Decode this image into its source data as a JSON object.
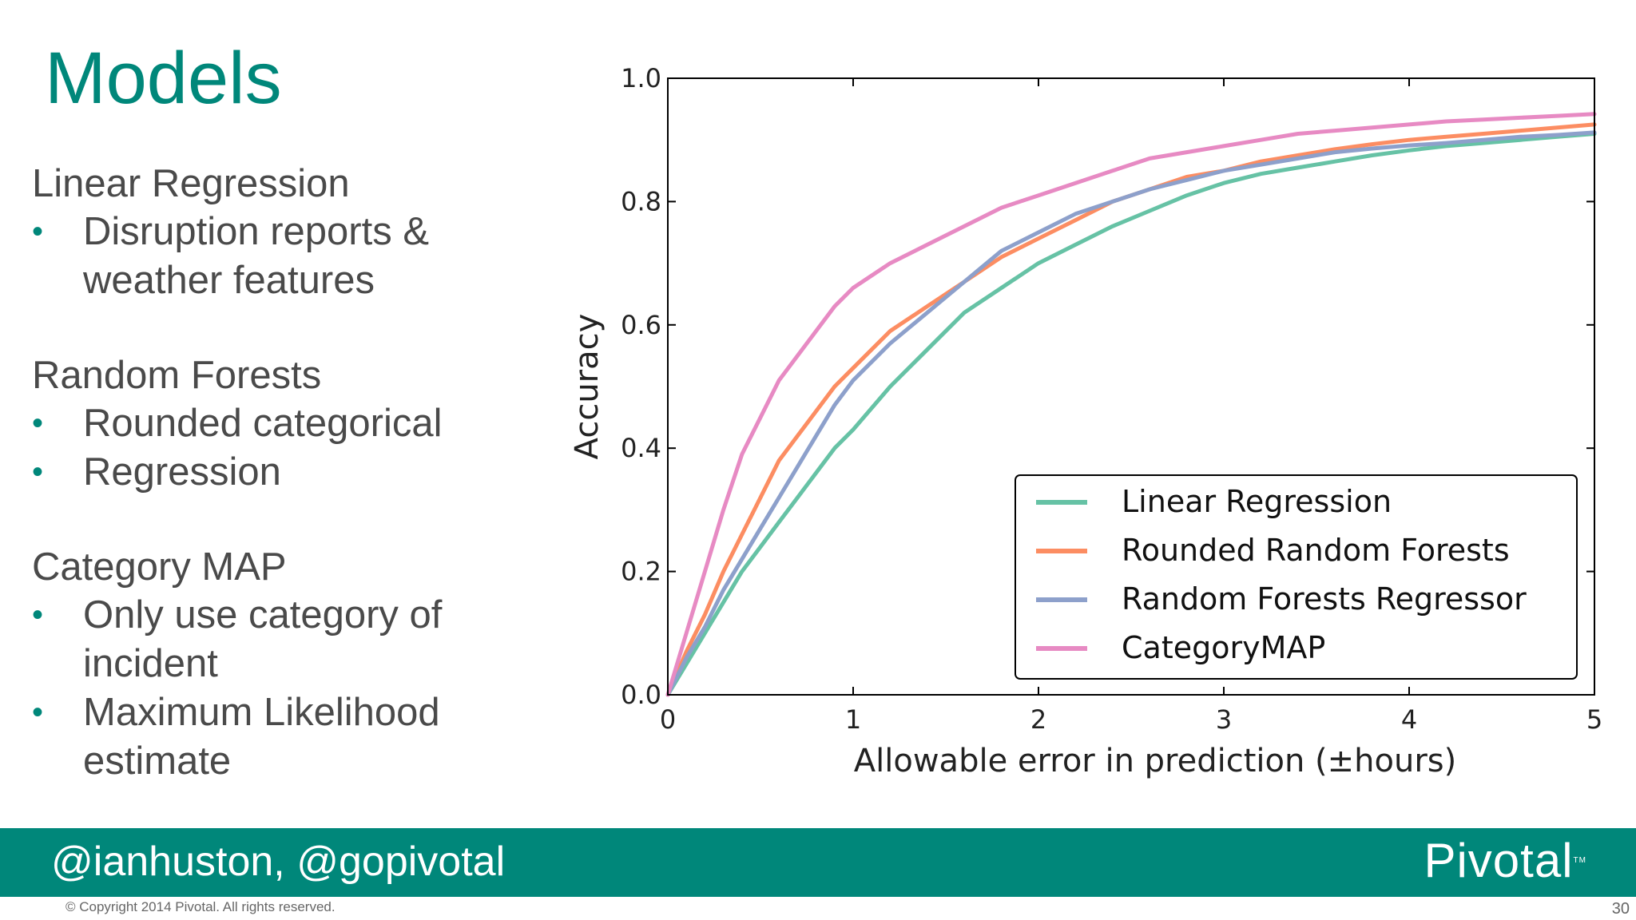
{
  "slide": {
    "title": "Models",
    "sections": [
      {
        "heading": "Linear Regression",
        "bullets": [
          "Disruption reports &",
          "weather features"
        ]
      },
      {
        "heading": "Random Forests",
        "bullets": [
          "Rounded categorical",
          "Regression"
        ]
      },
      {
        "heading": "Category MAP",
        "bullets": [
          "Only use category of",
          "incident",
          "Maximum Likelihood",
          "estimate"
        ]
      }
    ],
    "footer": {
      "handle": "@ianhuston, @gopivotal",
      "logo": "Pivotal",
      "logo_tm": "TM",
      "copyright": "© Copyright 2014 Pivotal. All rights reserved.",
      "page_number": "30"
    },
    "bullet_color": "#00877a",
    "accent_color": "#00877a"
  },
  "chart_data": {
    "type": "line",
    "xlabel": "Allowable error in prediction (±hours)",
    "ylabel": "Accuracy",
    "xlim": [
      0,
      5
    ],
    "ylim": [
      0,
      1.0
    ],
    "xticks": [
      "0",
      "1",
      "2",
      "3",
      "4",
      "5"
    ],
    "yticks": [
      "0.0",
      "0.2",
      "0.4",
      "0.6",
      "0.8",
      "1.0"
    ],
    "grid": false,
    "legend": "lower-right",
    "x": [
      0,
      0.1,
      0.2,
      0.3,
      0.4,
      0.5,
      0.6,
      0.7,
      0.8,
      0.9,
      1.0,
      1.2,
      1.4,
      1.6,
      1.8,
      2.0,
      2.2,
      2.4,
      2.6,
      2.8,
      3.0,
      3.2,
      3.4,
      3.6,
      3.8,
      4.0,
      4.2,
      4.4,
      4.6,
      4.8,
      5.0
    ],
    "series": [
      {
        "name": "Linear Regression",
        "color": "#66c2a5",
        "values": [
          0.0,
          0.05,
          0.1,
          0.15,
          0.2,
          0.24,
          0.28,
          0.32,
          0.36,
          0.4,
          0.43,
          0.5,
          0.56,
          0.62,
          0.66,
          0.7,
          0.73,
          0.76,
          0.785,
          0.81,
          0.83,
          0.845,
          0.855,
          0.865,
          0.875,
          0.883,
          0.89,
          0.895,
          0.9,
          0.905,
          0.91
        ]
      },
      {
        "name": "Rounded Random Forests",
        "color": "#fc8d62",
        "values": [
          0.0,
          0.07,
          0.13,
          0.2,
          0.26,
          0.32,
          0.38,
          0.42,
          0.46,
          0.5,
          0.53,
          0.59,
          0.63,
          0.67,
          0.71,
          0.74,
          0.77,
          0.8,
          0.82,
          0.84,
          0.85,
          0.865,
          0.875,
          0.885,
          0.893,
          0.9,
          0.905,
          0.91,
          0.915,
          0.92,
          0.925
        ]
      },
      {
        "name": "Random Forests Regressor",
        "color": "#8da0cb",
        "values": [
          0.0,
          0.06,
          0.11,
          0.17,
          0.22,
          0.27,
          0.32,
          0.37,
          0.42,
          0.47,
          0.51,
          0.57,
          0.62,
          0.67,
          0.72,
          0.75,
          0.78,
          0.8,
          0.82,
          0.835,
          0.85,
          0.86,
          0.87,
          0.88,
          0.886,
          0.891,
          0.895,
          0.9,
          0.905,
          0.908,
          0.912
        ]
      },
      {
        "name": "CategoryMAP",
        "color": "#e78ac3",
        "values": [
          0.0,
          0.1,
          0.2,
          0.3,
          0.39,
          0.45,
          0.51,
          0.55,
          0.59,
          0.63,
          0.66,
          0.7,
          0.73,
          0.76,
          0.79,
          0.81,
          0.83,
          0.85,
          0.87,
          0.88,
          0.89,
          0.9,
          0.91,
          0.915,
          0.92,
          0.925,
          0.93,
          0.933,
          0.936,
          0.939,
          0.942
        ]
      }
    ]
  }
}
